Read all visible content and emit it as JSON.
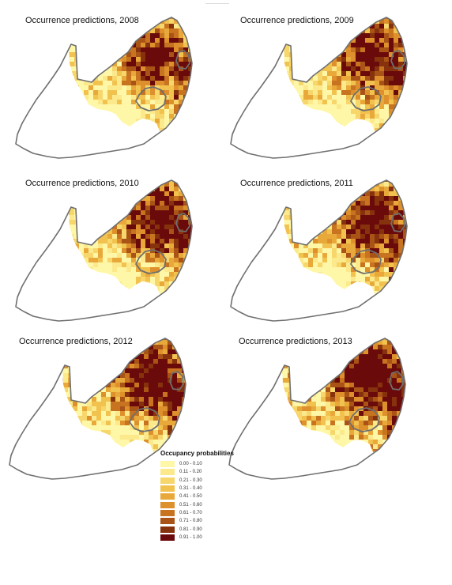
{
  "panels": [
    {
      "title": "Occurrence predictions, 2008",
      "density": 0.58,
      "seed": 11
    },
    {
      "title": "Occurrence predictions, 2009",
      "density": 0.64,
      "seed": 23
    },
    {
      "title": "Occurrence predictions, 2010",
      "density": 0.66,
      "seed": 37
    },
    {
      "title": "Occurrence predictions, 2011",
      "density": 0.68,
      "seed": 41
    },
    {
      "title": "Occurrence predictions, 2012",
      "density": 0.74,
      "seed": 53
    },
    {
      "title": "Occurrence predictions, 2013",
      "density": 0.8,
      "seed": 67
    }
  ],
  "legend": {
    "title": "Occupancy probabilities",
    "items": [
      {
        "label": "0.00 - 0.10",
        "color": "#fff7a8"
      },
      {
        "label": "0.11 - 0.20",
        "color": "#fbe98c"
      },
      {
        "label": "0.21 - 0.30",
        "color": "#f7d66c"
      },
      {
        "label": "0.31 - 0.40",
        "color": "#f2c24f"
      },
      {
        "label": "0.41 - 0.50",
        "color": "#e9a93a"
      },
      {
        "label": "0.51 - 0.60",
        "color": "#de902c"
      },
      {
        "label": "0.61 - 0.70",
        "color": "#c7731f"
      },
      {
        "label": "0.71 - 0.80",
        "color": "#a95416"
      },
      {
        "label": "0.81 - 0.90",
        "color": "#86320d"
      },
      {
        "label": "0.91 - 1.00",
        "color": "#6b0a0a"
      }
    ]
  }
}
